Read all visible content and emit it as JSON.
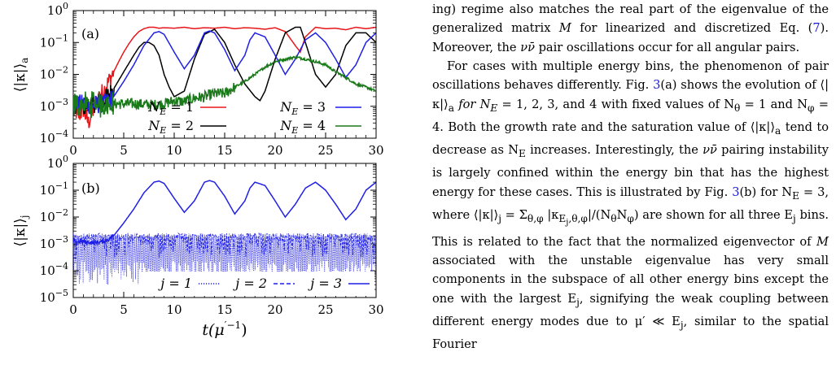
{
  "figure": {
    "panels": [
      {
        "label": "(a)",
        "ylabel": "⟨|κ|⟩",
        "ylabel_sub": "a",
        "yticks": [
          "10",
          "10",
          "10",
          "10",
          "10"
        ],
        "ytick_exps": [
          "0",
          "−1",
          "−2",
          "−3",
          "−4"
        ],
        "xticks": [
          "0",
          "5",
          "10",
          "15",
          "20",
          "25",
          "30"
        ],
        "legend": [
          {
            "label_pre": "N",
            "label_sub": "E",
            "label_post": " = 1",
            "color": "#e8161b"
          },
          {
            "label_pre": "N",
            "label_sub": "E",
            "label_post": " = 3",
            "color": "#1f1fe6"
          },
          {
            "label_pre": "N",
            "label_sub": "E",
            "label_post": " = 2",
            "color": "#000000"
          },
          {
            "label_pre": "N",
            "label_sub": "E",
            "label_post": " = 4",
            "color": "#1a7a1a"
          }
        ]
      },
      {
        "label": "(b)",
        "ylabel": "⟨|κ|⟩",
        "ylabel_sub": "j",
        "yticks": [
          "10",
          "10",
          "10",
          "10",
          "10",
          "10"
        ],
        "ytick_exps": [
          "0",
          "−1",
          "−2",
          "−3",
          "−4",
          "−5"
        ],
        "xticks": [
          "0",
          "5",
          "10",
          "15",
          "20",
          "25",
          "30"
        ],
        "xlabel_pre": "t(μ",
        "xlabel_sup": "′−1",
        "xlabel_post": ")",
        "legend": [
          {
            "label": "j = 1",
            "color": "#1f1fe6",
            "style": "dotted"
          },
          {
            "label": "j = 2",
            "color": "#1f1fe6",
            "style": "dashed"
          },
          {
            "label": "j = 3",
            "color": "#1f1fe6",
            "style": "solid"
          }
        ]
      }
    ]
  },
  "chart_data": [
    {
      "type": "line",
      "title": "(a)",
      "xlabel": "",
      "ylabel": "⟨|κ|⟩_a",
      "xlim": [
        0,
        30
      ],
      "ylim": [
        0.0001,
        1
      ],
      "yscale": "log",
      "legend_placement": "bottom-right",
      "series": [
        {
          "name": "N_E = 1",
          "color": "#e8161b",
          "x": [
            0,
            0.5,
            1,
            1.5,
            2,
            2.5,
            3,
            3.5,
            4,
            4.5,
            5,
            5.5,
            6,
            6.5,
            7,
            7.5,
            8,
            8.5,
            9,
            10,
            11,
            12,
            13,
            14,
            15,
            16,
            17,
            18,
            19,
            20,
            21,
            22,
            22.5,
            23,
            24,
            25,
            26,
            27,
            28,
            29,
            30
          ],
          "y": [
            0.001,
            0.0005,
            0.0008,
            0.0003,
            0.0008,
            0.002,
            0.003,
            0.006,
            0.012,
            0.025,
            0.05,
            0.09,
            0.15,
            0.22,
            0.27,
            0.3,
            0.3,
            0.28,
            0.29,
            0.28,
            0.3,
            0.27,
            0.29,
            0.28,
            0.3,
            0.27,
            0.29,
            0.28,
            0.26,
            0.29,
            0.22,
            0.08,
            0.05,
            0.15,
            0.3,
            0.27,
            0.28,
            0.25,
            0.3,
            0.27,
            0.3
          ]
        },
        {
          "name": "N_E = 2",
          "color": "#000000",
          "x": [
            0,
            1,
            2,
            3,
            4,
            5,
            6,
            6.5,
            7,
            7.5,
            8,
            8.5,
            9,
            9.5,
            10,
            11,
            12,
            13,
            14,
            15,
            16,
            17,
            18,
            18.5,
            19,
            20,
            21,
            22,
            22.5,
            23,
            24,
            25,
            26,
            27,
            28,
            29,
            30
          ],
          "y": [
            0.0012,
            0.001,
            0.0012,
            0.0015,
            0.0035,
            0.012,
            0.04,
            0.07,
            0.1,
            0.1,
            0.08,
            0.04,
            0.01,
            0.004,
            0.002,
            0.003,
            0.03,
            0.18,
            0.26,
            0.1,
            0.02,
            0.005,
            0.002,
            0.0015,
            0.003,
            0.03,
            0.2,
            0.3,
            0.3,
            0.1,
            0.01,
            0.004,
            0.01,
            0.08,
            0.2,
            0.2,
            0.1
          ]
        },
        {
          "name": "N_E = 3",
          "color": "#1f1fe6",
          "x": [
            0,
            1,
            2,
            3,
            4,
            5,
            6,
            7,
            8,
            8.5,
            9,
            10,
            11,
            12,
            13,
            13.5,
            14,
            15,
            16,
            17,
            17.5,
            18,
            19,
            20,
            21,
            22,
            23,
            24,
            25,
            26,
            27,
            28,
            29,
            30
          ],
          "y": [
            0.0012,
            0.0012,
            0.0011,
            0.0012,
            0.002,
            0.006,
            0.02,
            0.08,
            0.2,
            0.22,
            0.18,
            0.05,
            0.015,
            0.04,
            0.2,
            0.23,
            0.2,
            0.06,
            0.013,
            0.04,
            0.12,
            0.2,
            0.15,
            0.04,
            0.01,
            0.03,
            0.12,
            0.2,
            0.1,
            0.03,
            0.008,
            0.02,
            0.1,
            0.2
          ]
        },
        {
          "name": "N_E = 4",
          "color": "#1a7a1a",
          "x": [
            0,
            2,
            4,
            6,
            8,
            9,
            10,
            11,
            12,
            13,
            14,
            15,
            16,
            17,
            18,
            19,
            20,
            21,
            22,
            23,
            24,
            25,
            26,
            27,
            28,
            29,
            30
          ],
          "y": [
            0.0011,
            0.0012,
            0.0012,
            0.0012,
            0.0011,
            0.0012,
            0.0015,
            0.0014,
            0.0018,
            0.002,
            0.0025,
            0.0025,
            0.004,
            0.006,
            0.01,
            0.017,
            0.025,
            0.03,
            0.035,
            0.03,
            0.025,
            0.02,
            0.012,
            0.008,
            0.005,
            0.004,
            0.003
          ]
        }
      ]
    },
    {
      "type": "line",
      "title": "(b)",
      "xlabel": "t(μ′^−1)",
      "ylabel": "⟨|κ|⟩_j",
      "xlim": [
        0,
        30
      ],
      "ylim": [
        1e-05,
        1
      ],
      "yscale": "log",
      "legend_placement": "bottom-right",
      "series": [
        {
          "name": "j = 1",
          "color": "#1f1fe6",
          "style": "dotted",
          "x": [
            0,
            5,
            10,
            15,
            20,
            25,
            30
          ],
          "y": [
            0.0003,
            0.0003,
            0.0003,
            0.0003,
            0.0003,
            0.0003,
            0.0003
          ],
          "band": [
            3e-05,
            0.0025
          ]
        },
        {
          "name": "j = 2",
          "color": "#1f1fe6",
          "style": "dashed",
          "x": [
            0,
            5,
            10,
            15,
            20,
            25,
            30
          ],
          "y": [
            0.001,
            0.001,
            0.001,
            0.001,
            0.001,
            0.001,
            0.001
          ],
          "band": [
            0.0003,
            0.0025
          ]
        },
        {
          "name": "j = 3",
          "color": "#1f1fe6",
          "style": "solid",
          "x": [
            0,
            1,
            2,
            3,
            3.5,
            4,
            5,
            6,
            7,
            8,
            8.5,
            9,
            10,
            11,
            12,
            13,
            13.5,
            14,
            15,
            16,
            17,
            17.5,
            18,
            19,
            20,
            21,
            22,
            23,
            24,
            25,
            26,
            27,
            28,
            29,
            30
          ],
          "y": [
            0.0012,
            0.0012,
            0.0011,
            0.0012,
            0.0015,
            0.002,
            0.006,
            0.02,
            0.08,
            0.2,
            0.22,
            0.18,
            0.05,
            0.015,
            0.04,
            0.2,
            0.23,
            0.2,
            0.06,
            0.013,
            0.04,
            0.12,
            0.2,
            0.15,
            0.04,
            0.01,
            0.03,
            0.12,
            0.2,
            0.1,
            0.03,
            0.008,
            0.02,
            0.1,
            0.2
          ]
        }
      ]
    }
  ],
  "text": {
    "p1_a": "ing) regime also matches the real part of the eigenvalue of the generalized matrix ",
    "p1_M": "M",
    "p1_b": " for linearized and discretized Eq. (",
    "p1_ref": "7",
    "p1_c": "). Moreover, the ",
    "p1_nu": "νν̄",
    "p1_d": " pair oscillations occur for all angular pairs.",
    "p2_a": "For cases with multiple energy bins, the phenomenon of pair oscillations behaves differently. Fig. ",
    "p2_ref1": "3",
    "p2_b": "(a) shows the evolution of ⟨|κ|⟩",
    "p2_sub_a": "a",
    "p2_c": " for N",
    "p2_sub_E1": "E",
    "p2_d": " = 1, 2, 3, and 4 with fixed values of N",
    "p2_sub_theta1": "θ",
    "p2_e": " = 1 and N",
    "p2_sub_phi1": "φ",
    "p2_f": " = 4. Both the growth rate and the saturation value of ⟨|κ|⟩",
    "p2_sub_a2": "a",
    "p2_g": " tend to decrease as N",
    "p2_sub_E2": "E",
    "p2_h": " increases. Interestingly, the ",
    "p2_nu": "νν̄",
    "p2_i": " pairing instability is largely confined within the energy bin that has the highest energy for these cases. This is illustrated by Fig. ",
    "p2_ref2": "3",
    "p2_j": "(b) for N",
    "p2_sub_E3": "E",
    "p2_k": " = 3, where ⟨|κ|⟩",
    "p2_sub_j": "j",
    "p2_l": " = Σ",
    "p2_sub_tp": "θ,φ",
    "p2_m": " |κ",
    "p2_sub_Ej": "E",
    "p2_sub_j2": "j",
    "p2_sub_tp2": ",θ,φ",
    "p2_n": "|/(N",
    "p2_sub_theta2": "θ",
    "p2_o": "N",
    "p2_sub_phi2": "φ",
    "p2_p": ") are shown for all three E",
    "p2_sub_j3": "j",
    "p2_q": " bins. This is related to the fact that the normalized eigenvector of ",
    "p2_M": "M",
    "p2_r": " associated with the unstable eigenvalue has very small components in the subspace of all other energy bins except the one with the largest E",
    "p2_sub_j4": "j",
    "p2_s": ", signifying the weak coupling between different energy modes due to μ′ ≪ E",
    "p2_sub_j5": "j",
    "p2_t": ", similar to the spatial Fourier"
  }
}
